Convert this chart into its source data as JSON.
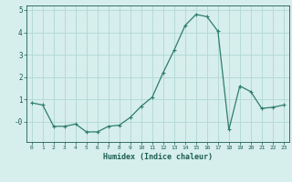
{
  "x": [
    0,
    1,
    2,
    3,
    4,
    5,
    6,
    7,
    8,
    9,
    10,
    11,
    12,
    13,
    14,
    15,
    16,
    17,
    18,
    19,
    20,
    21,
    22,
    23
  ],
  "y": [
    0.85,
    0.75,
    -0.2,
    -0.2,
    -0.1,
    -0.45,
    -0.45,
    -0.2,
    -0.15,
    0.2,
    0.7,
    1.1,
    2.2,
    3.2,
    4.3,
    4.8,
    4.7,
    4.05,
    -0.35,
    1.6,
    1.35,
    0.6,
    0.65,
    0.75
  ],
  "line_color": "#2e7d6e",
  "marker": "+",
  "bg_color": "#d6eeec",
  "grid_color": "#b0d8d4",
  "tick_color": "#1a5c52",
  "xlabel": "Humidex (Indice chaleur)",
  "ylim": [
    -0.9,
    5.2
  ],
  "xlim": [
    -0.5,
    23.5
  ],
  "yticks": [
    0,
    1,
    2,
    3,
    4,
    5
  ],
  "ytick_labels": [
    "-0",
    "1",
    "2",
    "3",
    "4",
    "5"
  ],
  "figwidth": 3.2,
  "figheight": 2.0,
  "dpi": 100
}
